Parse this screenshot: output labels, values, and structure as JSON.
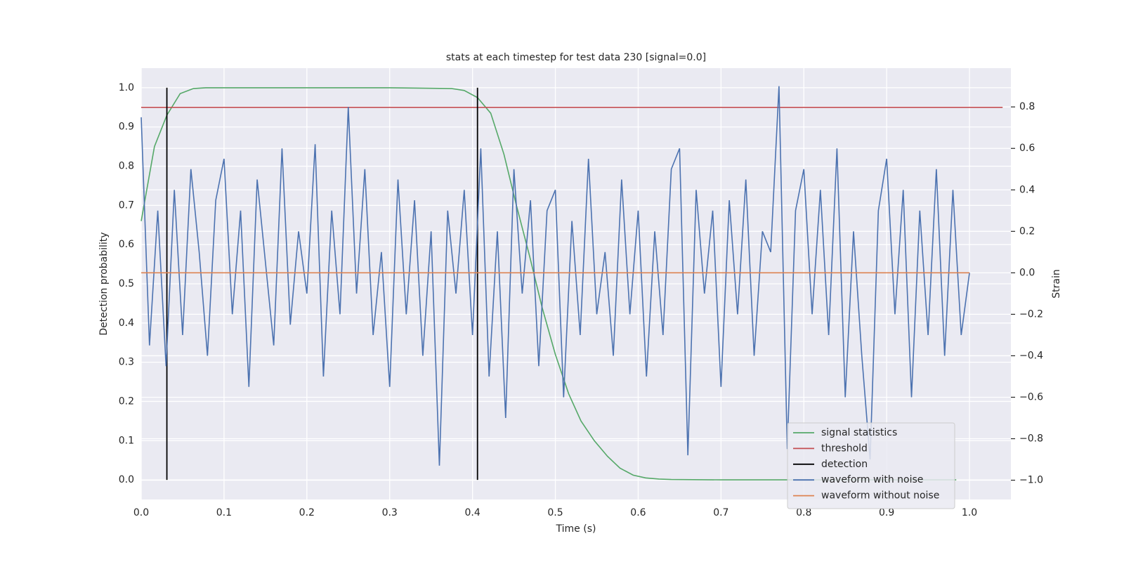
{
  "chart_data": {
    "type": "line",
    "title": "stats at each timestep for test data 230 [signal=0.0]",
    "x_label": "Time (s)",
    "y_label": "Detection probability",
    "y2_label": "Strain",
    "xlim": [
      0,
      1.05
    ],
    "ylim": [
      -0.05,
      1.05
    ],
    "y2lim": [
      -1.093,
      0.987
    ],
    "xticks": [
      {
        "value": 0,
        "label": "0.0"
      },
      0.1,
      0.2,
      0.3,
      0.4,
      0.5,
      0.6,
      0.7,
      0.8,
      0.9,
      {
        "value": 1,
        "label": "1.0"
      }
    ],
    "yticks": [
      {
        "value": 0,
        "label": "0.0"
      },
      0.1,
      0.2,
      0.3,
      0.4,
      0.5,
      0.6,
      0.7,
      0.8,
      0.9,
      {
        "value": 1,
        "label": "1.0"
      }
    ],
    "y2ticks": [
      {
        "value": -1,
        "label": "−1.0"
      },
      {
        "value": -0.8,
        "label": "−0.8"
      },
      {
        "value": -0.6,
        "label": "−0.6"
      },
      {
        "value": -0.4,
        "label": "−0.4"
      },
      {
        "value": -0.2,
        "label": "−0.2"
      },
      {
        "value": 0,
        "label": "0.0"
      },
      0.2,
      0.4,
      0.6,
      0.8
    ],
    "grid": true,
    "legend": "lower right",
    "series": [
      {
        "name": "signal statistics",
        "color": "#55a868",
        "kind": "line",
        "x": [
          0,
          0.016,
          0.031,
          0.047,
          0.063,
          0.078,
          0.1,
          0.2,
          0.3,
          0.375,
          0.39,
          0.406,
          0.422,
          0.438,
          0.453,
          0.469,
          0.484,
          0.5,
          0.516,
          0.531,
          0.547,
          0.563,
          0.578,
          0.594,
          0.609,
          0.625,
          0.64,
          0.7,
          0.8,
          0.9,
          0.984
        ],
        "values": [
          0.66,
          0.85,
          0.93,
          0.985,
          0.998,
          1,
          1,
          1,
          1,
          0.998,
          0.993,
          0.975,
          0.935,
          0.83,
          0.7,
          0.57,
          0.44,
          0.32,
          0.22,
          0.15,
          0.1,
          0.06,
          0.03,
          0.012,
          0.005,
          0.002,
          0.001,
          0,
          0,
          0,
          0
        ]
      },
      {
        "name": "threshold",
        "color": "#c44e52",
        "kind": "line",
        "x": [
          0,
          1.04
        ],
        "values": [
          0.95,
          0.95
        ]
      },
      {
        "name": "detection",
        "color": "#000000",
        "kind": "vline",
        "x": [
          0.031,
          0.406
        ],
        "values": [
          1,
          1
        ]
      },
      {
        "name": "waveform with noise",
        "color": "#4c72b0",
        "kind": "line",
        "axis": "y2",
        "x": [
          0,
          0.01,
          0.02,
          0.03,
          0.04,
          0.05,
          0.06,
          0.07,
          0.08,
          0.09,
          0.1,
          0.11,
          0.12,
          0.13,
          0.14,
          0.15,
          0.16,
          0.17,
          0.18,
          0.19,
          0.2,
          0.21,
          0.22,
          0.23,
          0.24,
          0.25,
          0.26,
          0.27,
          0.28,
          0.29,
          0.3,
          0.31,
          0.32,
          0.33,
          0.34,
          0.35,
          0.36,
          0.37,
          0.38,
          0.39,
          0.4,
          0.41,
          0.42,
          0.43,
          0.44,
          0.45,
          0.46,
          0.47,
          0.48,
          0.49,
          0.5,
          0.51,
          0.52,
          0.53,
          0.54,
          0.55,
          0.56,
          0.57,
          0.58,
          0.59,
          0.6,
          0.61,
          0.62,
          0.63,
          0.64,
          0.65,
          0.66,
          0.67,
          0.68,
          0.69,
          0.7,
          0.71,
          0.72,
          0.73,
          0.74,
          0.75,
          0.76,
          0.77,
          0.78,
          0.79,
          0.8,
          0.81,
          0.82,
          0.83,
          0.84,
          0.85,
          0.86,
          0.87,
          0.88,
          0.89,
          0.9,
          0.91,
          0.92,
          0.93,
          0.94,
          0.95,
          0.96,
          0.97,
          0.98,
          0.99,
          1
        ],
        "values": [
          0.75,
          -0.35,
          0.3,
          -0.45,
          0.4,
          -0.3,
          0.5,
          0.1,
          -0.4,
          0.35,
          0.55,
          -0.2,
          0.3,
          -0.55,
          0.45,
          0.05,
          -0.35,
          0.6,
          -0.25,
          0.2,
          -0.1,
          0.62,
          -0.5,
          0.3,
          -0.2,
          0.8,
          -0.1,
          0.5,
          -0.3,
          0.1,
          -0.55,
          0.45,
          -0.2,
          0.35,
          -0.4,
          0.2,
          -0.93,
          0.3,
          -0.1,
          0.4,
          -0.3,
          0.6,
          -0.5,
          0.2,
          -0.7,
          0.5,
          -0.1,
          0.35,
          -0.45,
          0.3,
          0.4,
          -0.6,
          0.25,
          -0.3,
          0.55,
          -0.2,
          0.1,
          -0.4,
          0.45,
          -0.2,
          0.3,
          -0.5,
          0.2,
          -0.3,
          0.5,
          0.6,
          -0.88,
          0.4,
          -0.1,
          0.3,
          -0.55,
          0.35,
          -0.2,
          0.45,
          -0.4,
          0.2,
          0.1,
          0.9,
          -0.85,
          0.3,
          0.5,
          -0.2,
          0.4,
          -0.3,
          0.6,
          -0.6,
          0.2,
          -0.4,
          -0.9,
          0.3,
          0.55,
          -0.2,
          0.4,
          -0.6,
          0.3,
          -0.3,
          0.5,
          -0.4,
          0.4,
          -0.3,
          0
        ]
      },
      {
        "name": "waveform without noise",
        "color": "#dd8452",
        "kind": "line",
        "axis": "y2",
        "x": [
          0,
          1
        ],
        "values": [
          0,
          0
        ]
      }
    ]
  }
}
